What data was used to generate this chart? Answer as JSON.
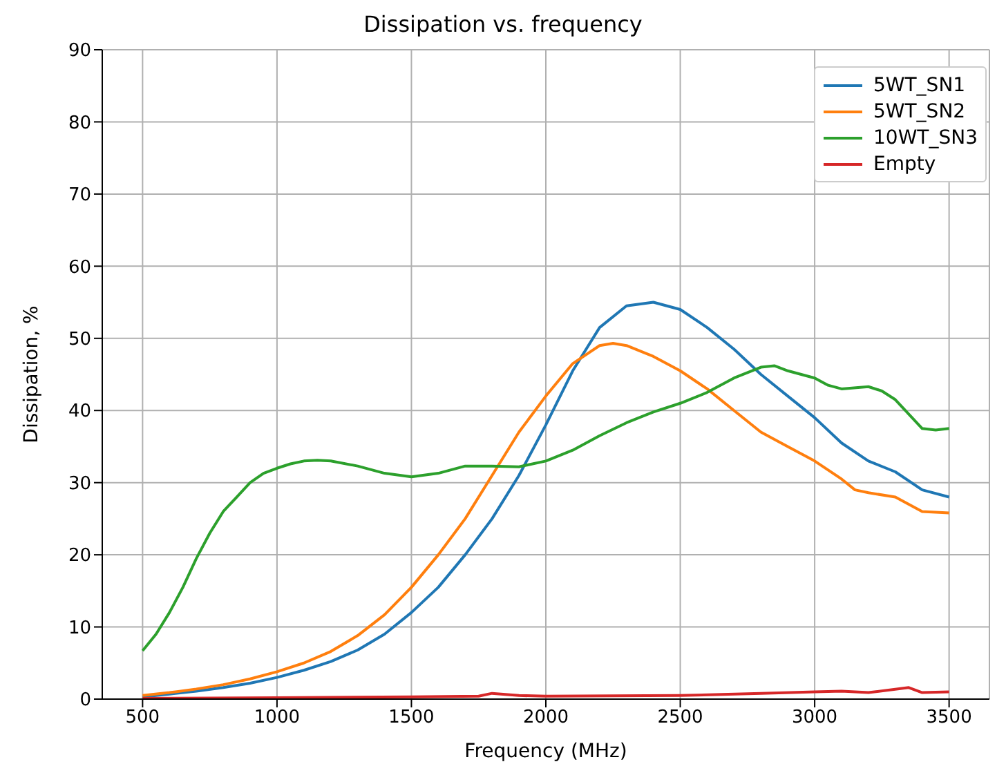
{
  "chart_data": {
    "type": "line",
    "title": "Dissipation vs. frequency",
    "xlabel": "Frequency (MHz)",
    "ylabel": "Dissipation, %",
    "xlim": [
      350,
      3650
    ],
    "xticks": [
      500,
      1000,
      1500,
      2000,
      2500,
      3000,
      3500
    ],
    "ylim": [
      0,
      90
    ],
    "yticks": [
      0,
      10,
      20,
      30,
      40,
      50,
      60,
      70,
      80,
      90
    ],
    "grid": true,
    "legend": "top right",
    "marker": "none",
    "line_style": "solid",
    "series": [
      {
        "name": "5WT_SN1",
        "color": "#1f77b4",
        "x": [
          500,
          600,
          700,
          800,
          900,
          1000,
          1100,
          1200,
          1300,
          1400,
          1500,
          1600,
          1700,
          1800,
          1900,
          2000,
          2100,
          2200,
          2300,
          2400,
          2500,
          2600,
          2700,
          2800,
          2900,
          3000,
          3100,
          3200,
          3300,
          3400,
          3500
        ],
        "values": [
          0.3,
          0.7,
          1.1,
          1.6,
          2.2,
          3.0,
          4.0,
          5.2,
          6.8,
          9.0,
          12,
          15.5,
          20,
          25,
          31,
          38,
          45.5,
          51.5,
          54.5,
          55,
          54,
          51.5,
          48.5,
          45,
          42,
          39,
          35.5,
          33,
          31.5,
          29,
          28
        ]
      },
      {
        "name": "5WT_SN2",
        "color": "#ff7f0e",
        "x": [
          500,
          600,
          700,
          800,
          900,
          1000,
          1100,
          1200,
          1300,
          1400,
          1500,
          1600,
          1700,
          1800,
          1900,
          2000,
          2100,
          2200,
          2250,
          2300,
          2400,
          2500,
          2600,
          2700,
          2800,
          2900,
          3000,
          3100,
          3150,
          3200,
          3300,
          3400,
          3500
        ],
        "values": [
          0.5,
          0.9,
          1.4,
          2.0,
          2.8,
          3.8,
          5.0,
          6.6,
          8.8,
          11.7,
          15.5,
          20,
          25,
          31,
          37,
          42,
          46.5,
          49,
          49.3,
          49,
          47.5,
          45.5,
          43,
          40,
          37,
          35,
          33,
          30.5,
          29,
          28.6,
          28,
          26,
          25.8
        ]
      },
      {
        "name": "10WT_SN3",
        "color": "#2ca02c",
        "x": [
          500,
          550,
          600,
          650,
          700,
          750,
          800,
          850,
          900,
          950,
          1000,
          1050,
          1100,
          1150,
          1200,
          1300,
          1400,
          1500,
          1600,
          1700,
          1800,
          1900,
          2000,
          2100,
          2200,
          2300,
          2400,
          2500,
          2600,
          2700,
          2800,
          2850,
          2900,
          3000,
          3050,
          3100,
          3200,
          3250,
          3300,
          3400,
          3450,
          3500
        ],
        "values": [
          6.7,
          9,
          12,
          15.5,
          19.5,
          23,
          26,
          28,
          30,
          31.3,
          32,
          32.6,
          33,
          33.1,
          33,
          32.3,
          31.3,
          30.8,
          31.3,
          32.3,
          32.3,
          32.2,
          33,
          34.5,
          36.5,
          38.3,
          39.8,
          41,
          42.5,
          44.5,
          46,
          46.2,
          45.5,
          44.5,
          43.5,
          43,
          43.3,
          42.7,
          41.5,
          37.5,
          37.3,
          37.5
        ]
      },
      {
        "name": "Empty",
        "color": "#d62728",
        "x": [
          500,
          1000,
          1500,
          1750,
          1800,
          1900,
          2000,
          2500,
          2800,
          3000,
          3100,
          3200,
          3350,
          3400,
          3500
        ],
        "values": [
          0.1,
          0.2,
          0.3,
          0.4,
          0.8,
          0.5,
          0.4,
          0.5,
          0.8,
          1.0,
          1.1,
          0.9,
          1.6,
          0.9,
          1.0
        ]
      }
    ]
  }
}
